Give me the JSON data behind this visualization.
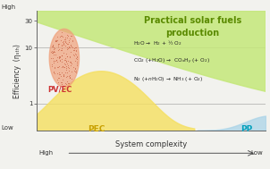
{
  "title": "Practical solar fuels\nproduction",
  "title_color": "#5a8a00",
  "xlabel": "System complexity",
  "ylabel": "Efficiency  (ηₛₜₕ)",
  "background_color": "#f2f2ee",
  "green_color": "#c5e87a",
  "pec_color": "#f5e060",
  "pvec_color": "#f0a07a",
  "pp_color": "#aad4e8",
  "reactions": [
    "H$_2$O →  H$_2$ + ½ O$_2$",
    "CO$_2$ (+H$_2$O) →  CO$_x$H$_y$ (+ O$_2$)",
    "N$_2$ (+$n$H$_2$O) →  NH$_3$ (+ O$_2$)"
  ]
}
